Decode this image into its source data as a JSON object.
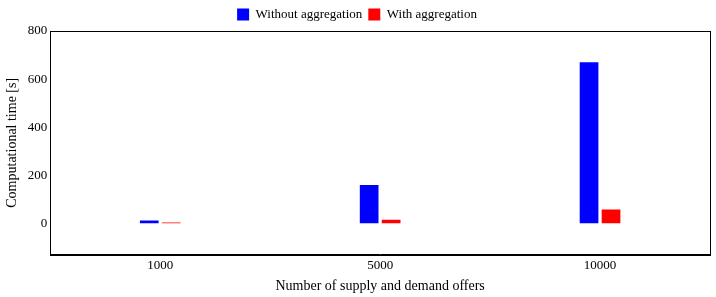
{
  "chart_data": {
    "type": "bar",
    "x_label": "Number of supply and demand offers",
    "y_label": "Computational time [s]",
    "categories": [
      "1000",
      "5000",
      "10000"
    ],
    "series": [
      {
        "name": "Without aggregation",
        "color": "#0000ff",
        "values": [
          12,
          160,
          670
        ]
      },
      {
        "name": "With aggregation",
        "color": "#ff0000",
        "values": [
          3,
          15,
          58
        ]
      }
    ],
    "ylim": [
      -130,
      800
    ],
    "yticks": [
      0,
      200,
      400,
      600,
      800
    ],
    "grid": false,
    "legend": "top"
  }
}
